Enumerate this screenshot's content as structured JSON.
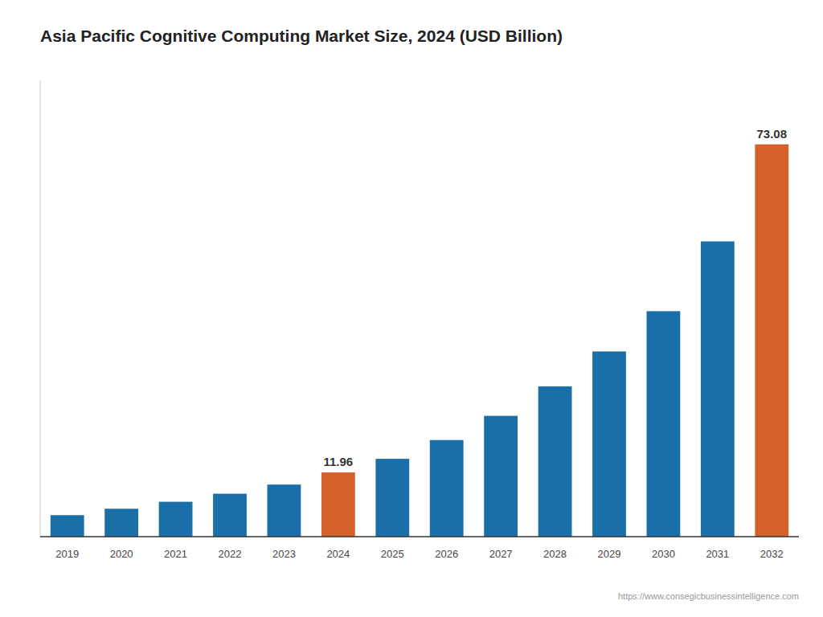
{
  "chart_data": {
    "type": "bar",
    "title": "Asia Pacific Cognitive Computing Market Size, 2024 (USD Billion)",
    "categories": [
      "2019",
      "2020",
      "2021",
      "2022",
      "2023",
      "2024",
      "2025",
      "2026",
      "2027",
      "2028",
      "2029",
      "2030",
      "2031",
      "2032"
    ],
    "values": [
      4.0,
      5.2,
      6.5,
      8.0,
      9.7,
      11.96,
      14.5,
      18.0,
      22.5,
      28.0,
      34.5,
      42.0,
      55.0,
      73.08
    ],
    "value_labels": [
      null,
      null,
      null,
      null,
      null,
      "11.96",
      null,
      null,
      null,
      null,
      null,
      null,
      null,
      "73.08"
    ],
    "data_labels": true,
    "colors": [
      "#1a6fa8",
      "#1a6fa8",
      "#1a6fa8",
      "#1a6fa8",
      "#1a6fa8",
      "#d4612a",
      "#1a6fa8",
      "#1a6fa8",
      "#1a6fa8",
      "#1a6fa8",
      "#1a6fa8",
      "#1a6fa8",
      "#1a6fa8",
      "#d4612a"
    ],
    "ylim": [
      0,
      85
    ],
    "tick_labels": "x",
    "grid": false,
    "annotation": "https://www.consegicbusinessintelligence.com"
  }
}
